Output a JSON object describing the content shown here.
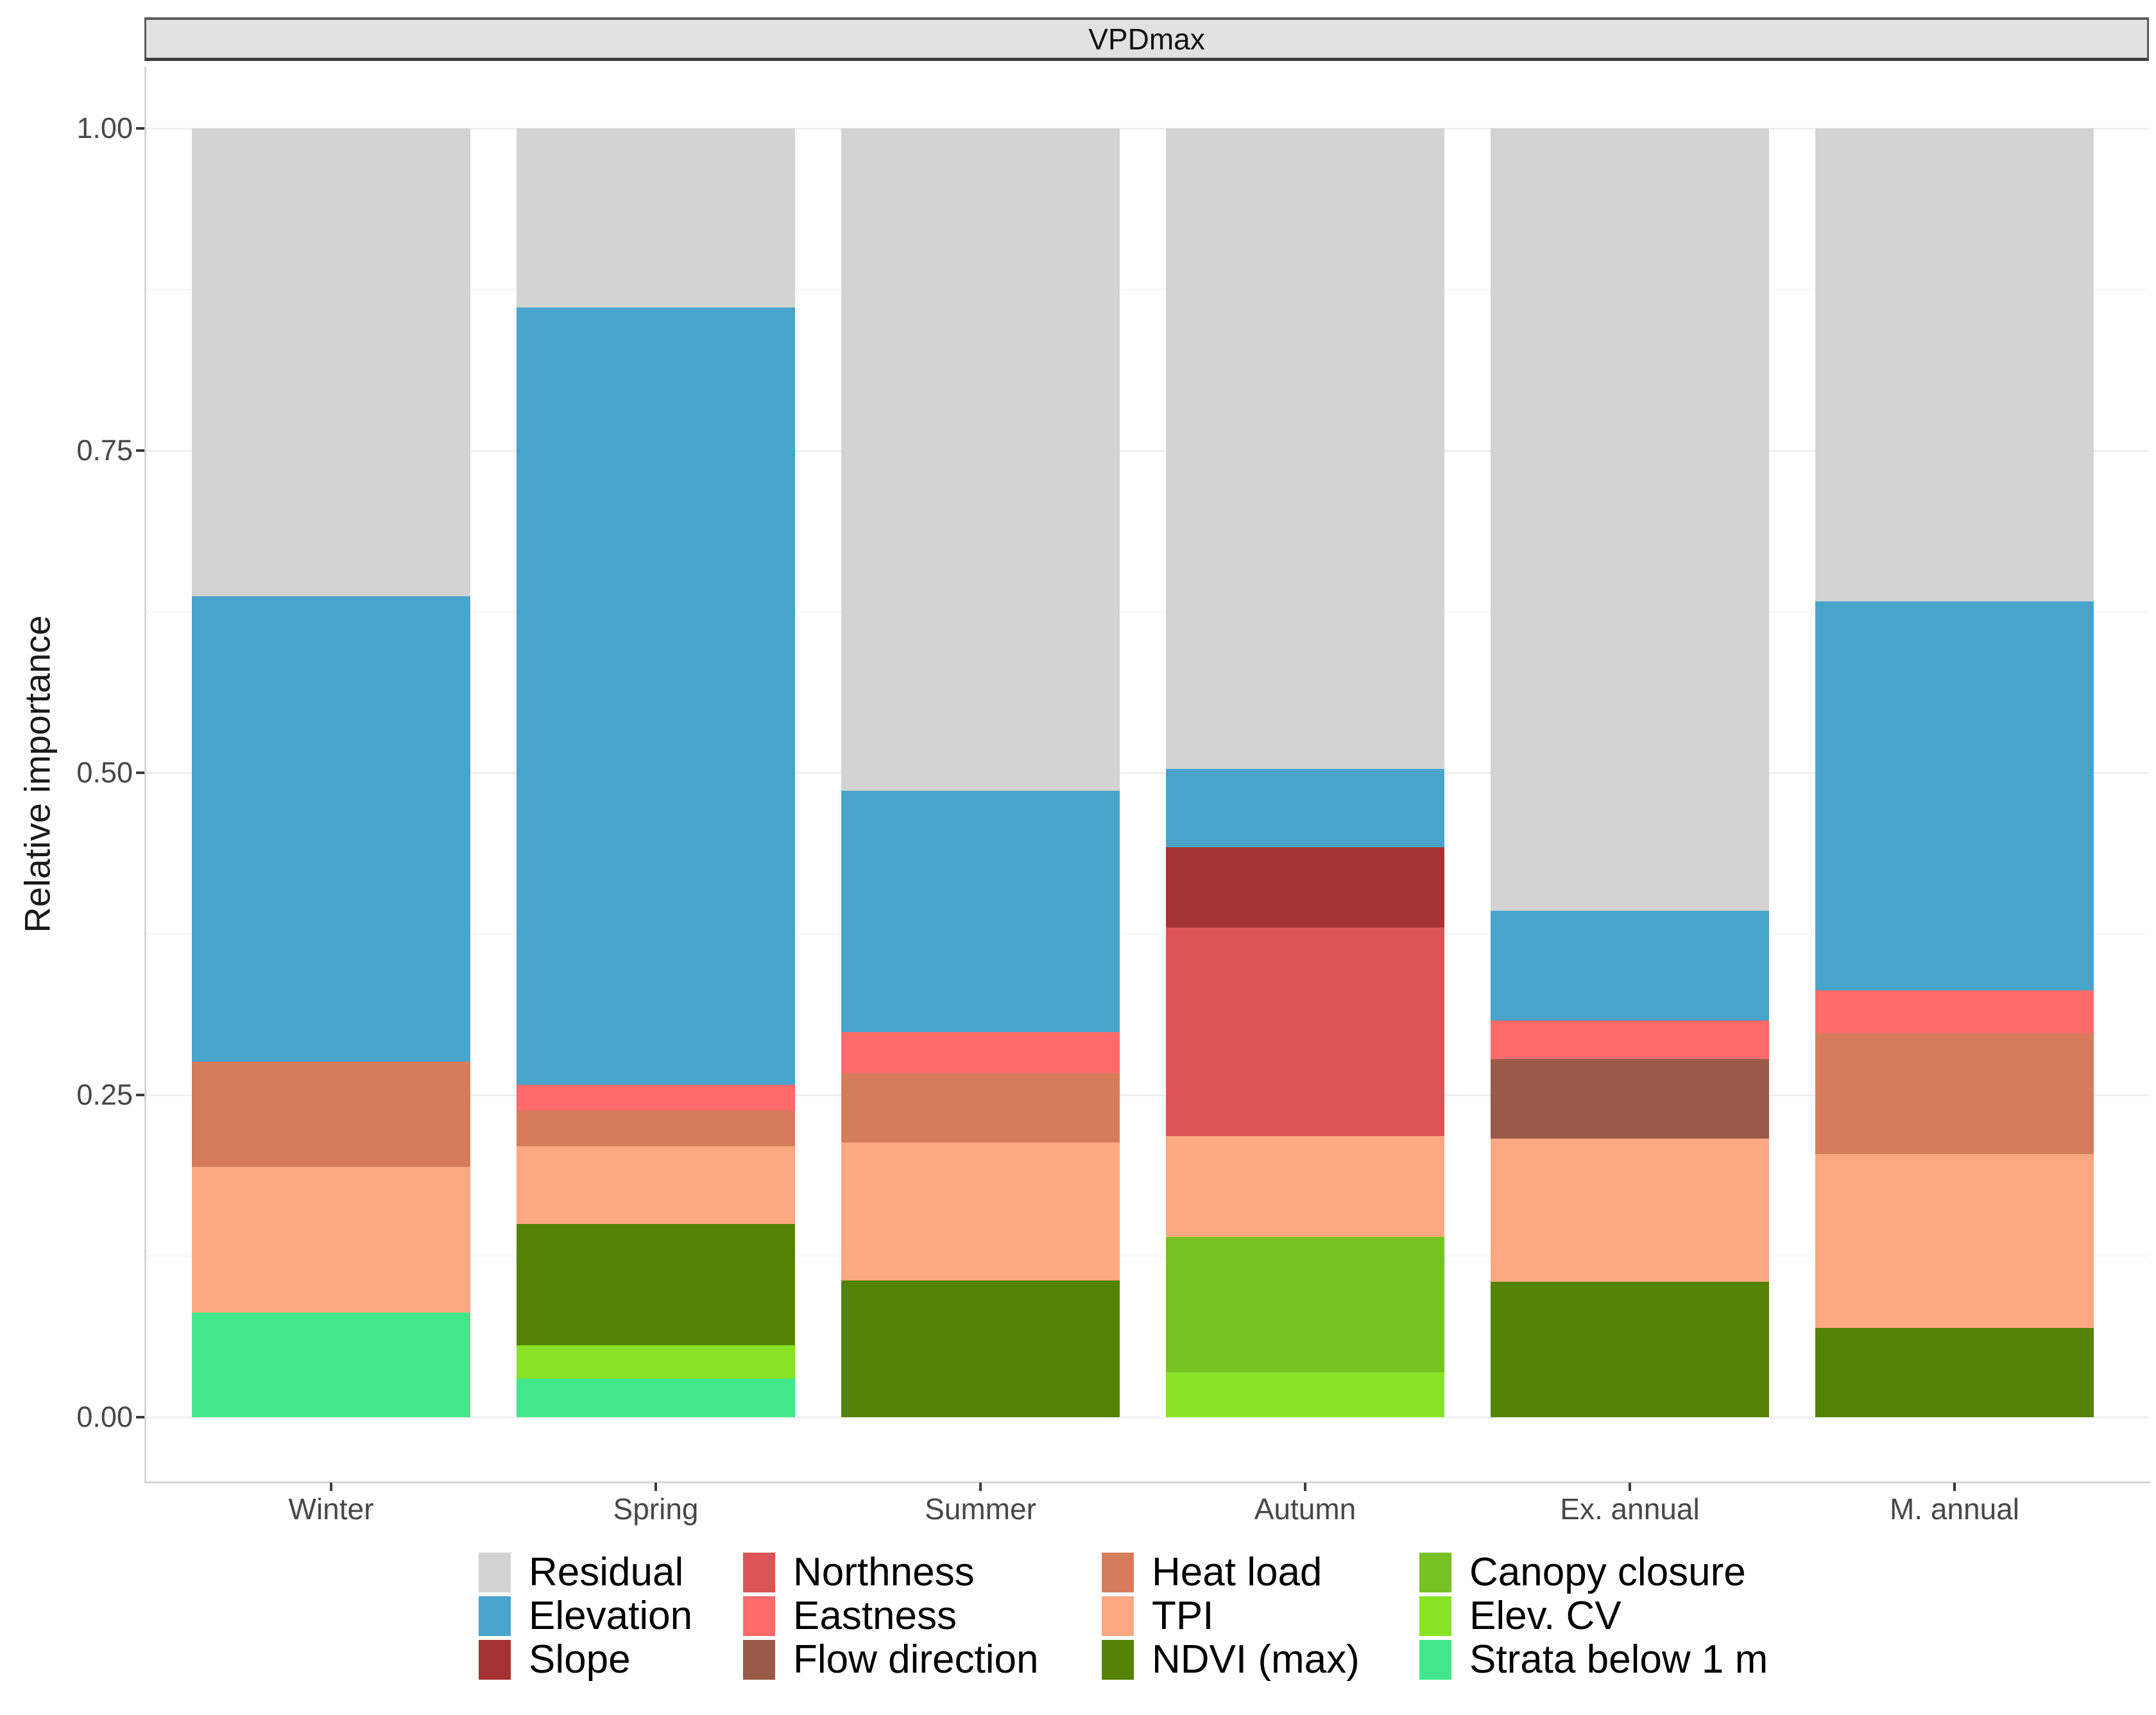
{
  "figure": {
    "strip_title": "VPDmax",
    "y_axis_title": "Relative importance"
  },
  "colors": {
    "residual": "#d3d3d3",
    "elevation": "#48a4cb",
    "slope": "#a63333",
    "northness": "#dd5454",
    "eastness": "#fd6b6b",
    "flow_direction": "#9a5a48",
    "heat_load": "#d67c5b",
    "tpi": "#fca883",
    "ndvi_max": "#548203",
    "canopy_closure": "#76c223",
    "elev_cv": "#88e326",
    "strata_below_1m": "#42e78c"
  },
  "chart_data": {
    "type": "bar",
    "stacked": true,
    "title": "VPDmax",
    "xlabel": "",
    "ylabel": "Relative importance",
    "ylim": [
      0,
      1
    ],
    "grid": "on",
    "legend_position": "bottom",
    "categories": [
      "Winter",
      "Spring",
      "Summer",
      "Autumn",
      "Ex. annual",
      "M. annual"
    ],
    "y_tick_labels": [
      "1.00",
      "0.75",
      "0.50",
      "0.25",
      "0.00"
    ],
    "y_tick_values": [
      1.0,
      0.75,
      0.5,
      0.25,
      0.0
    ],
    "series": [
      {
        "name": "Strata below 1 m",
        "key": "strata_below_1m",
        "values": [
          0.081,
          0.03,
          0,
          0,
          0,
          0
        ]
      },
      {
        "name": "Elev. CV",
        "key": "elev_cv",
        "values": [
          0,
          0.026,
          0,
          0.035,
          0,
          0
        ]
      },
      {
        "name": "Canopy closure",
        "key": "canopy_closure",
        "values": [
          0,
          0,
          0,
          0.105,
          0,
          0
        ]
      },
      {
        "name": "NDVI (max)",
        "key": "ndvi_max",
        "values": [
          0,
          0.094,
          0.106,
          0,
          0.105,
          0.069
        ]
      },
      {
        "name": "TPI",
        "key": "tpi",
        "values": [
          0.113,
          0.06,
          0.107,
          0.078,
          0.111,
          0.135
        ]
      },
      {
        "name": "Heat load",
        "key": "heat_load",
        "values": [
          0.082,
          0.028,
          0.054,
          0,
          0,
          0.094
        ]
      },
      {
        "name": "Flow direction",
        "key": "flow_direction",
        "values": [
          0,
          0,
          0,
          0,
          0.062,
          0
        ]
      },
      {
        "name": "Eastness",
        "key": "eastness",
        "values": [
          0,
          0.02,
          0.032,
          0,
          0.03,
          0.033
        ]
      },
      {
        "name": "Northness",
        "key": "northness",
        "values": [
          0,
          0,
          0,
          0.162,
          0,
          0
        ]
      },
      {
        "name": "Slope",
        "key": "slope",
        "values": [
          0,
          0,
          0,
          0.062,
          0,
          0
        ]
      },
      {
        "name": "Elevation",
        "key": "elevation",
        "values": [
          0.361,
          0.603,
          0.187,
          0.061,
          0.085,
          0.302
        ]
      },
      {
        "name": "Residual",
        "key": "residual",
        "values": [
          0.363,
          0.139,
          0.514,
          0.497,
          0.607,
          0.367
        ]
      }
    ],
    "legend_columns": [
      [
        {
          "label": "Residual",
          "key": "residual"
        },
        {
          "label": "Elevation",
          "key": "elevation"
        },
        {
          "label": "Slope",
          "key": "slope"
        }
      ],
      [
        {
          "label": "Northness",
          "key": "northness"
        },
        {
          "label": "Eastness",
          "key": "eastness"
        },
        {
          "label": "Flow direction",
          "key": "flow_direction"
        }
      ],
      [
        {
          "label": "Heat load",
          "key": "heat_load"
        },
        {
          "label": "TPI",
          "key": "tpi"
        },
        {
          "label": "NDVI (max)",
          "key": "ndvi_max"
        }
      ],
      [
        {
          "label": "Canopy closure",
          "key": "canopy_closure"
        },
        {
          "label": "Elev. CV",
          "key": "elev_cv"
        },
        {
          "label": "Strata below 1 m",
          "key": "strata_below_1m"
        }
      ]
    ]
  }
}
